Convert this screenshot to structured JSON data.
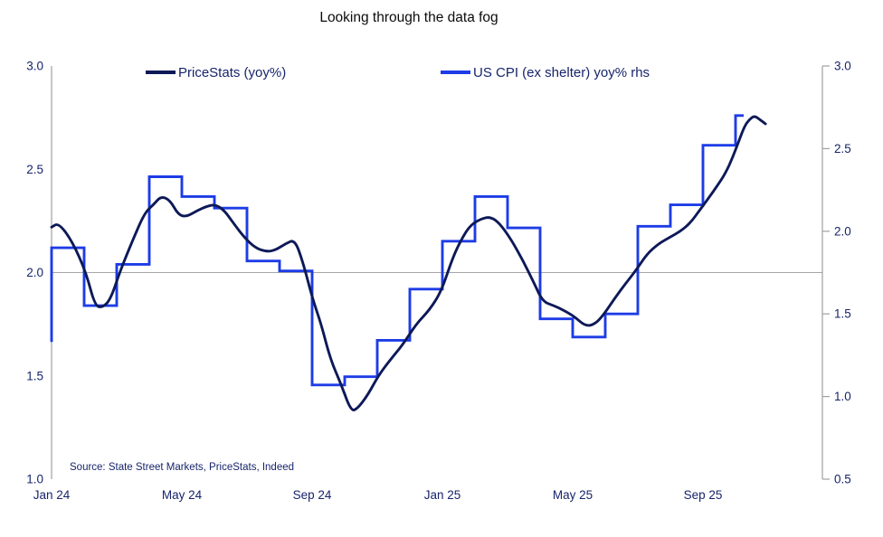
{
  "title": "Looking through the data fog",
  "source": "Source: State Street Markets, PriceStats, Indeed",
  "colors": {
    "pricestats_line": "#0d1957",
    "cpi_line": "#1d3ce6",
    "axis_line": "#a0a0a0",
    "gridline": "#a6a6a6",
    "tick_text": "#17246b",
    "title_text": "#0b0b0b"
  },
  "chart_data": {
    "type": "line",
    "title": "Looking through the data fog",
    "xlabel": "",
    "ylabel": "",
    "grid": "single horizontal gridline at left-axis 2.0",
    "legend_position": "top inside, horizontal",
    "x_axis": {
      "unit": "month",
      "start_label": "Jan 24",
      "ticks": [
        {
          "m": 0,
          "label": "Jan 24"
        },
        {
          "m": 4,
          "label": "May 24"
        },
        {
          "m": 8,
          "label": "Sep 24"
        },
        {
          "m": 12,
          "label": "Jan 25"
        },
        {
          "m": 16,
          "label": "May 25"
        },
        {
          "m": 20,
          "label": "Sep 25"
        }
      ],
      "domain_months": [
        0,
        23.6
      ]
    },
    "left_axis": {
      "min": 1.0,
      "max": 3.0,
      "ticks": [
        3.0,
        2.5,
        2.0,
        1.5,
        1.0
      ]
    },
    "right_axis": {
      "min": 0.5,
      "max": 3.0,
      "ticks": [
        3.0,
        2.5,
        2.0,
        1.5,
        1.0,
        0.5
      ]
    },
    "series": [
      {
        "name": "PriceStats (yoy%)",
        "axis": "left",
        "style": "smooth",
        "color": "#0d1957",
        "points": [
          [
            0.0,
            2.22
          ],
          [
            0.22,
            2.24
          ],
          [
            0.64,
            2.15
          ],
          [
            1.06,
            2.0
          ],
          [
            1.33,
            1.84
          ],
          [
            1.56,
            1.83
          ],
          [
            1.81,
            1.87
          ],
          [
            2.11,
            2.01
          ],
          [
            2.5,
            2.16
          ],
          [
            2.86,
            2.29
          ],
          [
            3.14,
            2.33
          ],
          [
            3.36,
            2.37
          ],
          [
            3.64,
            2.35
          ],
          [
            3.89,
            2.28
          ],
          [
            4.14,
            2.27
          ],
          [
            4.47,
            2.3
          ],
          [
            4.75,
            2.32
          ],
          [
            5.03,
            2.33
          ],
          [
            5.31,
            2.3
          ],
          [
            5.58,
            2.24
          ],
          [
            5.92,
            2.17
          ],
          [
            6.25,
            2.12
          ],
          [
            6.61,
            2.1
          ],
          [
            6.89,
            2.11
          ],
          [
            7.19,
            2.14
          ],
          [
            7.47,
            2.16
          ],
          [
            7.72,
            2.05
          ],
          [
            8.0,
            1.88
          ],
          [
            8.28,
            1.75
          ],
          [
            8.56,
            1.58
          ],
          [
            8.89,
            1.46
          ],
          [
            9.19,
            1.33
          ],
          [
            9.39,
            1.34
          ],
          [
            9.72,
            1.41
          ],
          [
            10.03,
            1.5
          ],
          [
            10.36,
            1.57
          ],
          [
            10.78,
            1.65
          ],
          [
            11.19,
            1.75
          ],
          [
            11.61,
            1.82
          ],
          [
            11.97,
            1.91
          ],
          [
            12.31,
            2.07
          ],
          [
            12.58,
            2.16
          ],
          [
            12.86,
            2.23
          ],
          [
            13.19,
            2.26
          ],
          [
            13.47,
            2.27
          ],
          [
            13.75,
            2.24
          ],
          [
            14.11,
            2.16
          ],
          [
            14.47,
            2.06
          ],
          [
            14.81,
            1.95
          ],
          [
            15.08,
            1.86
          ],
          [
            15.42,
            1.84
          ],
          [
            15.69,
            1.82
          ],
          [
            16.03,
            1.79
          ],
          [
            16.39,
            1.74
          ],
          [
            16.69,
            1.75
          ],
          [
            16.97,
            1.8
          ],
          [
            17.31,
            1.88
          ],
          [
            17.64,
            1.95
          ],
          [
            17.94,
            2.01
          ],
          [
            18.28,
            2.09
          ],
          [
            18.64,
            2.14
          ],
          [
            18.97,
            2.17
          ],
          [
            19.31,
            2.2
          ],
          [
            19.61,
            2.24
          ],
          [
            19.89,
            2.3
          ],
          [
            20.17,
            2.36
          ],
          [
            20.44,
            2.42
          ],
          [
            20.69,
            2.48
          ],
          [
            20.92,
            2.56
          ],
          [
            21.11,
            2.64
          ],
          [
            21.28,
            2.71
          ],
          [
            21.42,
            2.74
          ],
          [
            21.58,
            2.76
          ],
          [
            21.75,
            2.74
          ],
          [
            21.92,
            2.72
          ]
        ]
      },
      {
        "name": "US CPI (ex shelter) yoy% rhs",
        "axis": "right",
        "style": "step",
        "color": "#1d3ce6",
        "leadin_value": 1.33,
        "last_step_end_month": 21.25,
        "months": [
          "Jan 24",
          "Feb 24",
          "Mar 24",
          "Apr 24",
          "May 24",
          "Jun 24",
          "Jul 24",
          "Aug 24",
          "Sep 24",
          "Oct 24",
          "Nov 24",
          "Dec 24",
          "Jan 25",
          "Feb 25",
          "Mar 25",
          "Apr 25",
          "May 25",
          "Jun 25",
          "Jul 25",
          "Aug 25",
          "Sep 25",
          "Oct 25"
        ],
        "values": [
          1.9,
          1.55,
          1.8,
          2.33,
          2.21,
          2.14,
          1.82,
          1.76,
          1.07,
          1.12,
          1.34,
          1.65,
          1.94,
          2.21,
          2.02,
          1.47,
          1.36,
          1.5,
          2.03,
          2.16,
          2.52,
          2.7
        ]
      }
    ]
  }
}
